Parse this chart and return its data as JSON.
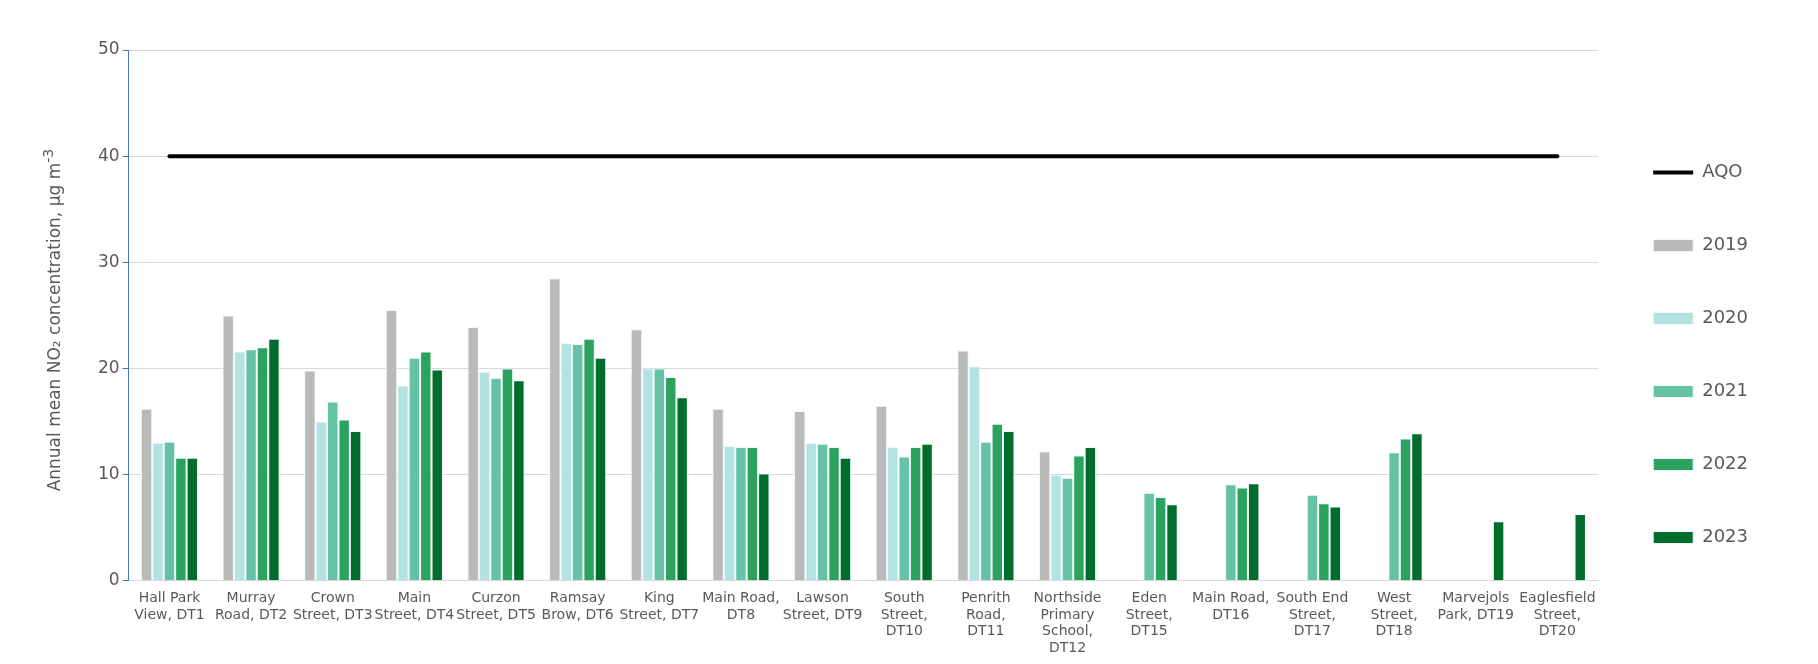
{
  "chart_data": {
    "type": "bar",
    "ylabel": "Annual mean NO₂ concentration, µg m$^{-3}$",
    "categories": [
      "Hall Park View, DT1",
      "Murray Road, DT2",
      "Crown Street, DT3",
      "Main Street, DT4",
      "Curzon Street, DT5",
      "Ramsay Brow, DT6",
      "King Street, DT7",
      "Main Road, DT8",
      "Lawson Street, DT9",
      "South Street, DT10",
      "Penrith Road, DT11",
      "Northside Primary School, DT12",
      "Eden Street, DT15",
      "Main Road, DT16",
      "South End Street, DT17",
      "West Street, DT18",
      "Marvejols Park, DT19",
      "Eaglesfield Street, DT20"
    ],
    "series": [
      {
        "name": "2019",
        "color": "#bababa",
        "values": [
          16.2,
          25.0,
          19.8,
          25.5,
          23.9,
          28.5,
          23.7,
          16.2,
          16.0,
          16.5,
          21.7,
          12.2,
          null,
          null,
          null,
          null,
          null,
          null
        ]
      },
      {
        "name": "2020",
        "color": "#b2e2e2",
        "values": [
          13.0,
          21.6,
          15.0,
          18.4,
          19.7,
          22.4,
          20.0,
          12.7,
          13.0,
          12.6,
          20.2,
          10.0,
          null,
          null,
          null,
          null,
          null,
          null
        ]
      },
      {
        "name": "2021",
        "color": "#66c2a4",
        "values": [
          13.1,
          21.8,
          16.9,
          21.0,
          19.1,
          22.3,
          20.0,
          12.6,
          12.9,
          11.7,
          13.1,
          9.7,
          8.3,
          9.1,
          8.1,
          12.1,
          null,
          null
        ]
      },
      {
        "name": "2022",
        "color": "#2ca25f",
        "values": [
          11.6,
          22.0,
          15.2,
          21.6,
          20.0,
          22.8,
          19.2,
          12.6,
          12.6,
          12.6,
          14.8,
          11.8,
          7.9,
          8.8,
          7.3,
          13.4,
          null,
          null
        ]
      },
      {
        "name": "2023",
        "color": "#006d2c",
        "values": [
          11.6,
          22.8,
          14.1,
          19.9,
          18.9,
          21.0,
          17.3,
          10.1,
          11.6,
          12.9,
          14.1,
          12.6,
          7.2,
          9.2,
          7.0,
          13.9,
          5.6,
          6.3
        ]
      },
      {
        "name": "AQO",
        "type": "line",
        "color": "#000000",
        "values": [
          40,
          40,
          40,
          40,
          40,
          40,
          40,
          40,
          40,
          40,
          40,
          40,
          40,
          40,
          40,
          40,
          40,
          40
        ]
      }
    ],
    "ylim": [
      0,
      50
    ],
    "yticks": [
      0,
      10,
      20,
      30,
      40,
      50
    ],
    "grid": "y",
    "legend": "right",
    "marker": "none"
  }
}
